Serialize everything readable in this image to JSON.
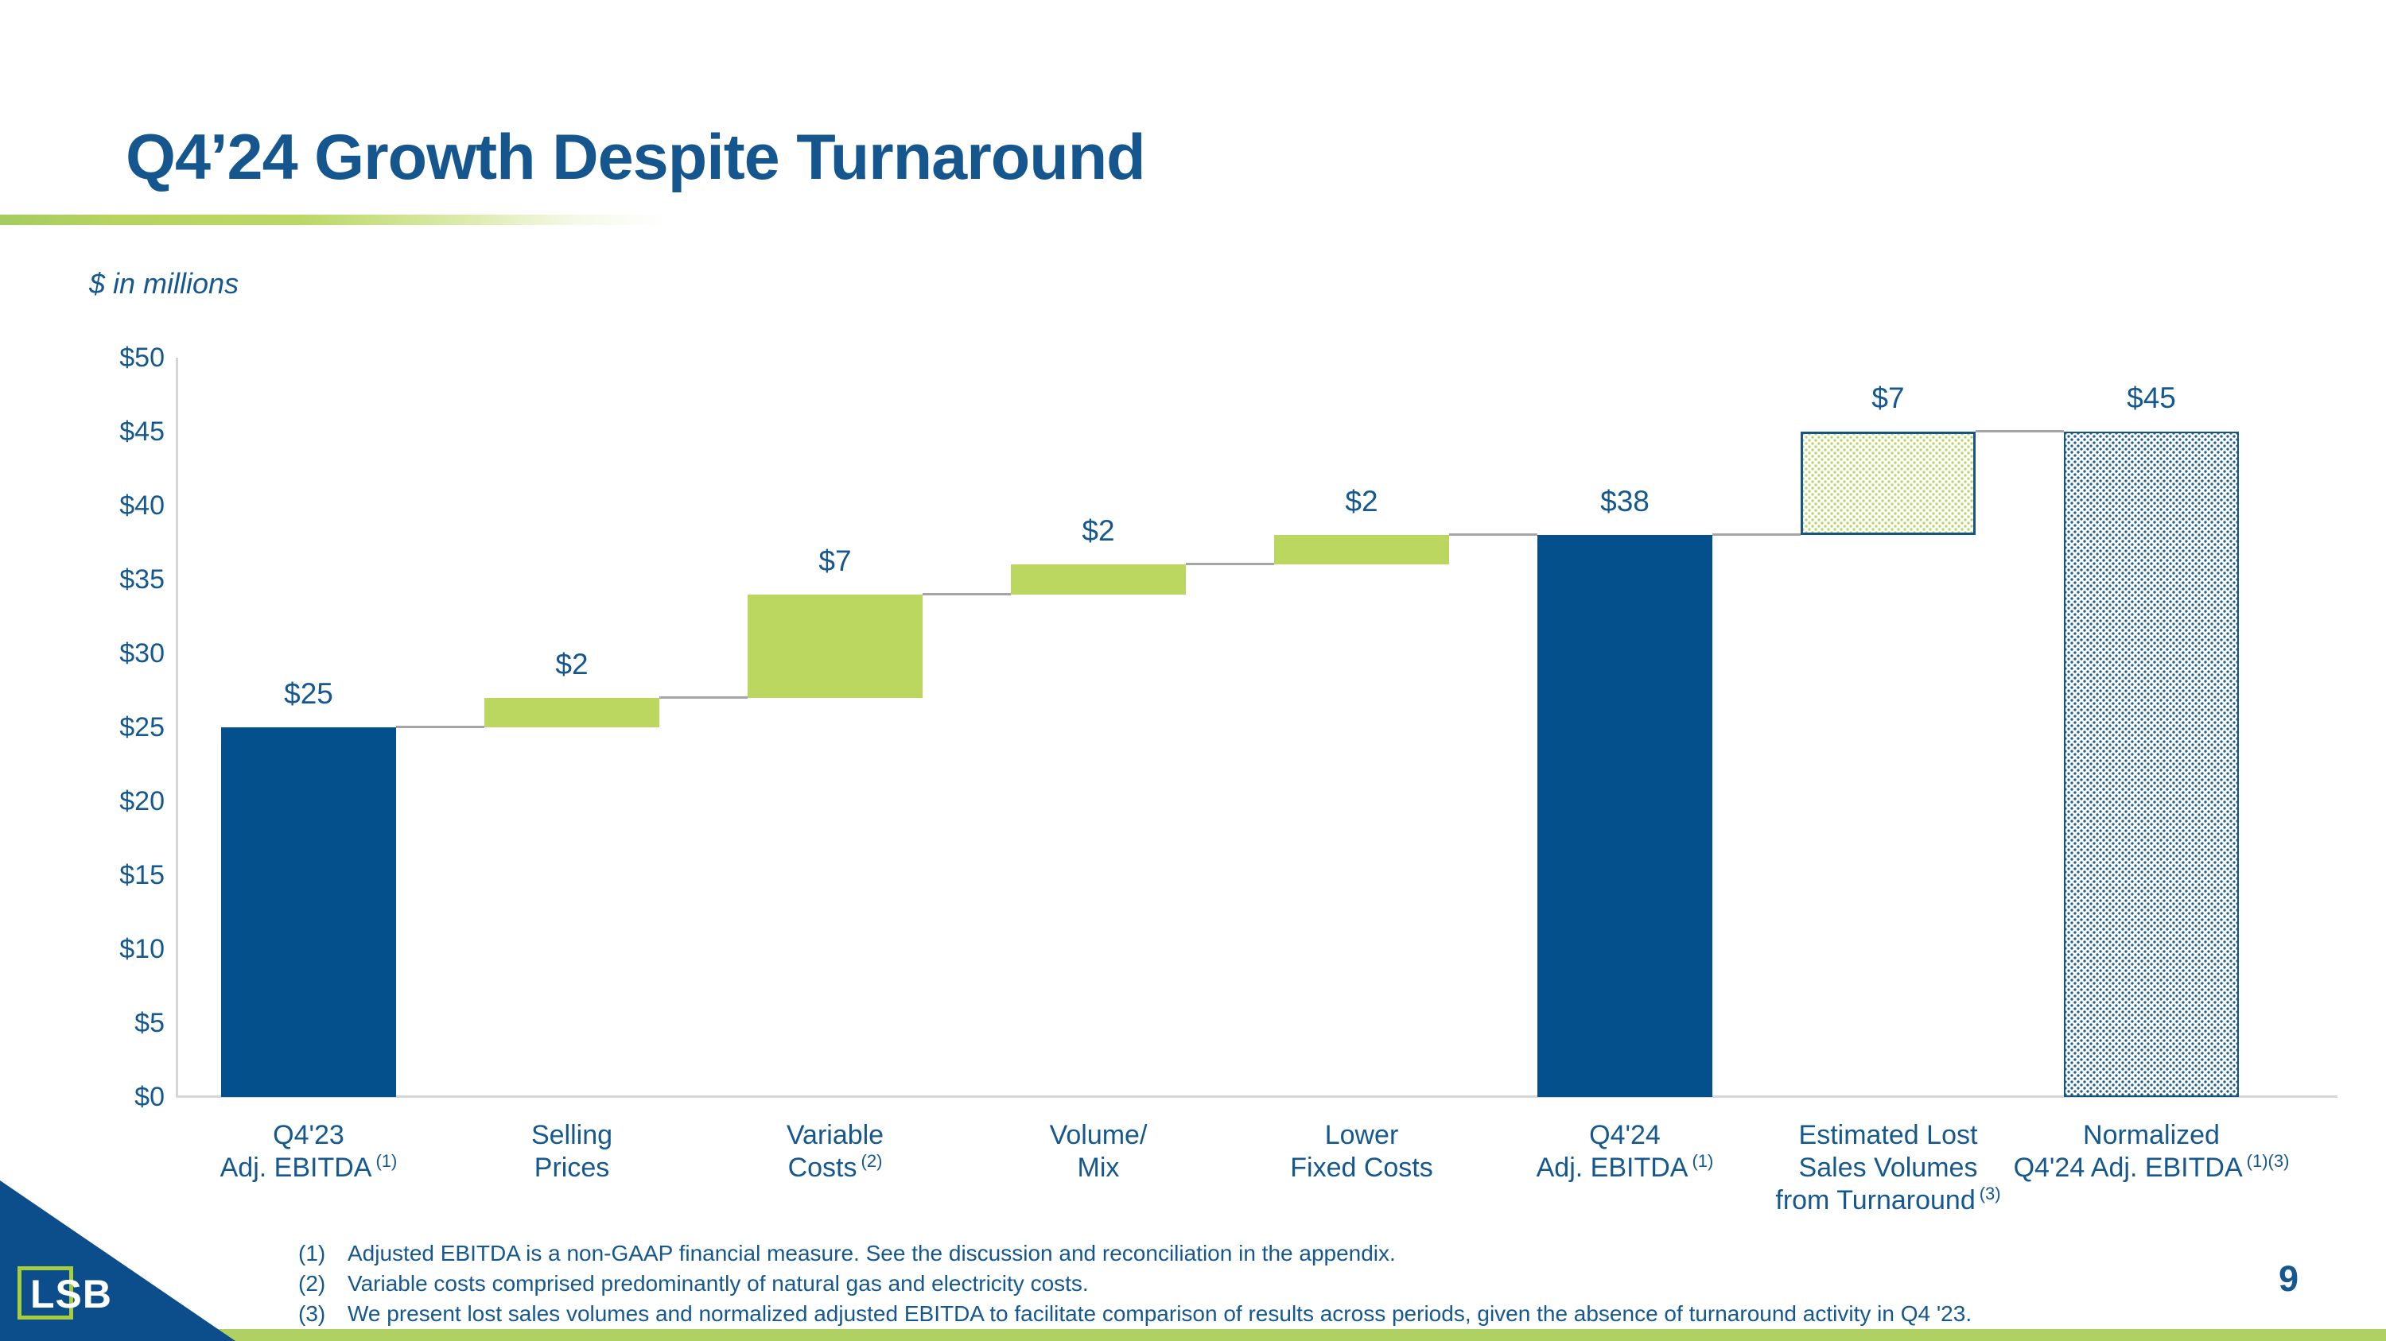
{
  "slide": {
    "title": "Q4’24 Growth Despite Turnaround",
    "units_note": "$ in millions",
    "page_number": "9",
    "logo_text": "LSB"
  },
  "colors": {
    "text_blue": "#15578F",
    "bar_blue": "#04508C",
    "bar_green": "#BCD75F",
    "hatch_border_blue": "#155685",
    "connector_gray": "#A5A5A5",
    "axis_gray": "#D6D6D6",
    "bottom_strip_green": "#AFD163",
    "logo_green": "#A6CE3C",
    "logo_triangle_blue": "#0B4E8B"
  },
  "chart_data": {
    "type": "bar",
    "subtype": "waterfall",
    "title": "Q4'24 Growth Despite Turnaround",
    "ylabel": "$ in millions",
    "ylim": [
      0,
      50
    ],
    "ytick_interval": 5,
    "ytick_labels": [
      "$0",
      "$5",
      "$10",
      "$15",
      "$20",
      "$25",
      "$30",
      "$35",
      "$40",
      "$45",
      "$50"
    ],
    "grid": "off",
    "legend": "none",
    "categories": [
      {
        "id": "q423-adj-ebitda",
        "label_lines": [
          "Q4'23",
          "Adj. EBITDA"
        ],
        "footnote_ref": "(1)",
        "start": 0,
        "end": 25,
        "delta": 25,
        "value_label": "$25",
        "style": "solid-blue"
      },
      {
        "id": "selling-prices",
        "label_lines": [
          "Selling",
          "Prices"
        ],
        "footnote_ref": "",
        "start": 25,
        "end": 27,
        "delta": 2,
        "value_label": "$2",
        "style": "solid-green"
      },
      {
        "id": "variable-costs",
        "label_lines": [
          "Variable",
          "Costs"
        ],
        "footnote_ref": "(2)",
        "start": 27,
        "end": 34,
        "delta": 7,
        "value_label": "$7",
        "style": "solid-green"
      },
      {
        "id": "volume-mix",
        "label_lines": [
          "Volume/",
          "Mix"
        ],
        "footnote_ref": "",
        "start": 34,
        "end": 36,
        "delta": 2,
        "value_label": "$2",
        "style": "solid-green"
      },
      {
        "id": "lower-fixed-costs",
        "label_lines": [
          "Lower",
          "Fixed Costs"
        ],
        "footnote_ref": "",
        "start": 36,
        "end": 38,
        "delta": 2,
        "value_label": "$2",
        "style": "solid-green"
      },
      {
        "id": "q424-adj-ebitda",
        "label_lines": [
          "Q4'24",
          "Adj. EBITDA"
        ],
        "footnote_ref": "(1)",
        "start": 0,
        "end": 38,
        "delta": 38,
        "value_label": "$38",
        "style": "solid-blue"
      },
      {
        "id": "estimated-lost-sales-volumes-from-turnaround",
        "label_lines": [
          "Estimated Lost",
          "Sales Volumes",
          "from Turnaround"
        ],
        "footnote_ref": "(3)",
        "start": 38,
        "end": 45,
        "delta": 7,
        "value_label": "$7",
        "style": "hatch-green"
      },
      {
        "id": "normalized-q424-adj-ebitda",
        "label_lines": [
          "Normalized",
          "Q4'24 Adj. EBITDA"
        ],
        "footnote_ref": "(1)(3)",
        "start": 0,
        "end": 45,
        "delta": 45,
        "value_label": "$45",
        "style": "hatch-blue"
      }
    ]
  },
  "footnotes": [
    {
      "num": "(1)",
      "text": "Adjusted EBITDA is a non-GAAP financial measure.  See the discussion and reconciliation in the appendix."
    },
    {
      "num": "(2)",
      "text": "Variable costs comprised predominantly of natural gas and electricity costs."
    },
    {
      "num": "(3)",
      "text": "We present lost sales volumes and normalized adjusted EBITDA to facilitate comparison of results across periods, given the absence of turnaround activity in Q4 '23."
    }
  ]
}
